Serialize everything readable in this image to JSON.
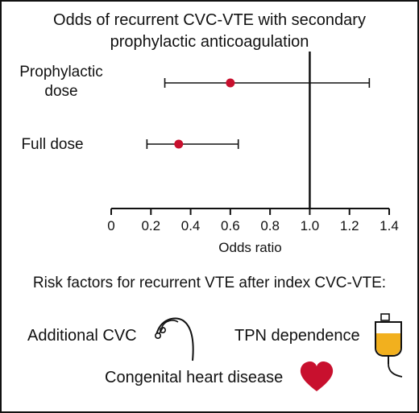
{
  "chart_data": {
    "type": "scatter",
    "title": "Odds of recurrent CVC-VTE with secondary prophylactic anticoagulation",
    "xlabel": "Odds ratio",
    "xlim": [
      0,
      1.4
    ],
    "xticks": [
      "0",
      "0.2",
      "0.4",
      "0.6",
      "0.8",
      "1.0",
      "1.2",
      "1.4"
    ],
    "reference_line": 1.0,
    "categories": [
      "Prophylactic dose",
      "Full dose"
    ],
    "points": [
      {
        "label_line1": "Prophylactic",
        "label_line2": "dose",
        "estimate": 0.6,
        "ci_low": 0.27,
        "ci_high": 1.3
      },
      {
        "label_line1": "Full dose",
        "label_line2": "",
        "estimate": 0.34,
        "ci_low": 0.18,
        "ci_high": 0.64
      }
    ],
    "point_color": "#c8102e"
  },
  "risk_factors": {
    "heading": "Risk factors for recurrent VTE after index CVC-VTE:",
    "items": [
      {
        "label": "Additional CVC",
        "icon": "catheter-icon"
      },
      {
        "label": "TPN dependence",
        "icon": "tpn-bag-icon"
      },
      {
        "label": "Congenital heart disease",
        "icon": "heart-icon"
      }
    ]
  },
  "colors": {
    "heart": "#c8102e",
    "tpn_fluid": "#f2b01e"
  }
}
